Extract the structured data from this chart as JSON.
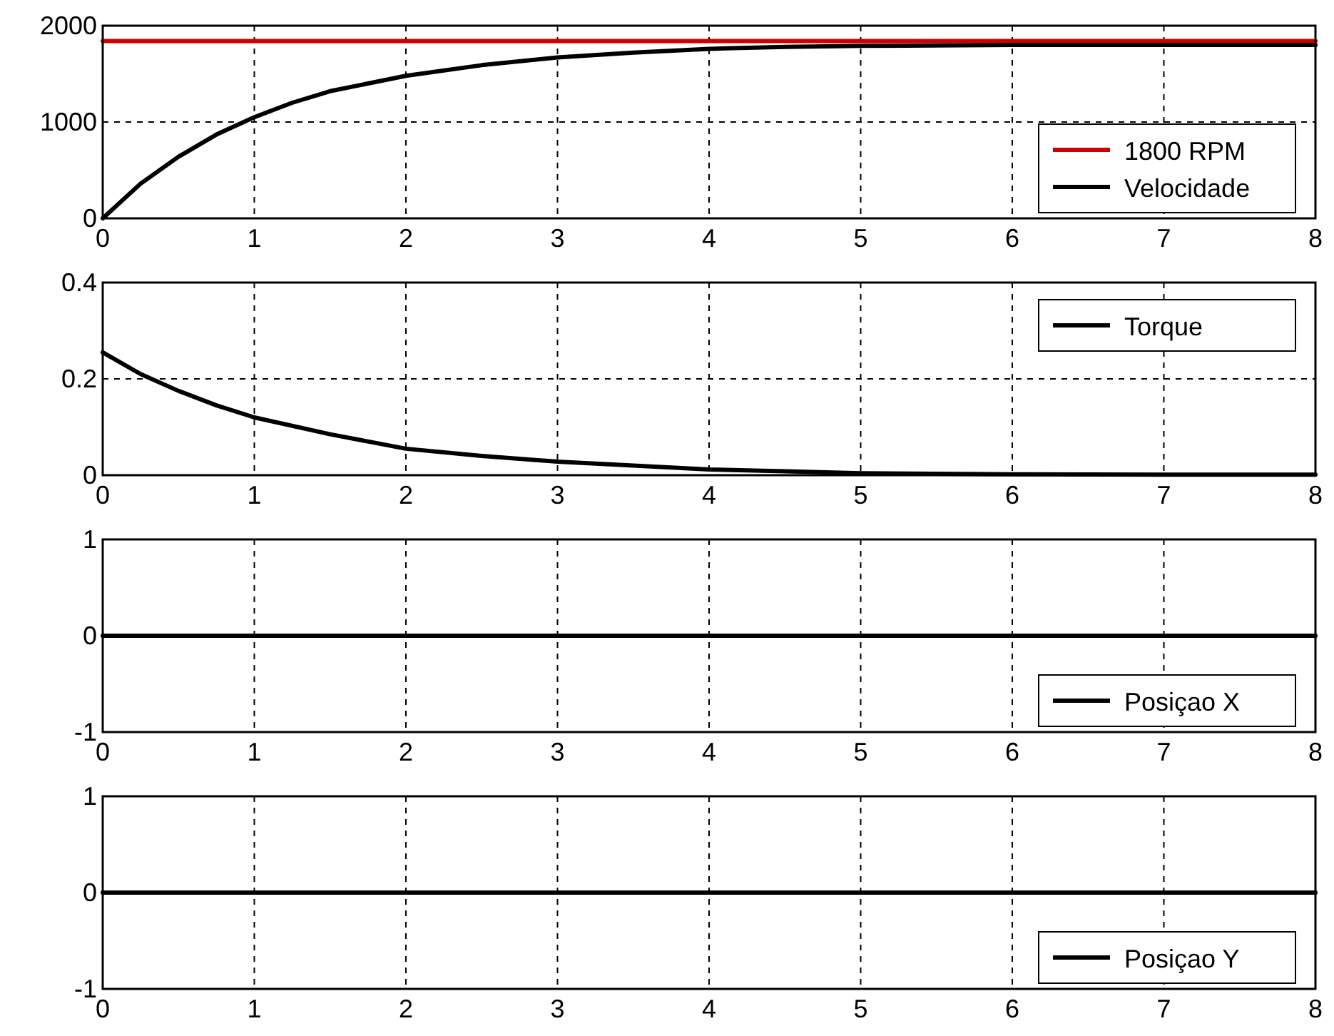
{
  "chart_data": [
    {
      "type": "line",
      "x": [
        0,
        0.25,
        0.5,
        0.75,
        1,
        1.25,
        1.5,
        2,
        2.5,
        3,
        3.5,
        4,
        4.5,
        5,
        6,
        7,
        8
      ],
      "series": [
        {
          "name": "1800 RPM",
          "color": "#cc0000",
          "x": [
            0,
            8
          ],
          "values": [
            1840,
            1840
          ]
        },
        {
          "name": "Velocidade",
          "color": "#000000",
          "values": [
            0,
            360,
            640,
            870,
            1050,
            1200,
            1320,
            1480,
            1590,
            1670,
            1720,
            1760,
            1780,
            1790,
            1800,
            1800,
            1800
          ]
        }
      ],
      "xlim": [
        0,
        8
      ],
      "xticks": [
        0,
        1,
        2,
        3,
        4,
        5,
        6,
        7,
        8
      ],
      "ylim": [
        0,
        2000
      ],
      "yticks": [
        0,
        1000,
        2000
      ],
      "grid": true,
      "legend": "bottom right",
      "line_style": "solid"
    },
    {
      "type": "line",
      "x": [
        0,
        0.25,
        0.5,
        0.75,
        1,
        1.5,
        2,
        2.5,
        3,
        3.5,
        4,
        4.5,
        5,
        6,
        7,
        8
      ],
      "series": [
        {
          "name": "Torque",
          "color": "#000000",
          "values": [
            0.255,
            0.21,
            0.175,
            0.145,
            0.12,
            0.085,
            0.055,
            0.04,
            0.028,
            0.02,
            0.012,
            0.008,
            0.004,
            0.002,
            0.001,
            0.001
          ]
        }
      ],
      "xlim": [
        0,
        8
      ],
      "xticks": [
        0,
        1,
        2,
        3,
        4,
        5,
        6,
        7,
        8
      ],
      "ylim": [
        0,
        0.4
      ],
      "yticks": [
        0,
        0.2,
        0.4
      ],
      "grid": true,
      "legend": "top right",
      "line_style": "solid"
    },
    {
      "type": "line",
      "x": [
        0,
        8
      ],
      "series": [
        {
          "name": "Posiçao X",
          "color": "#000000",
          "values": [
            0,
            0
          ]
        }
      ],
      "xlim": [
        0,
        8
      ],
      "xticks": [
        0,
        1,
        2,
        3,
        4,
        5,
        6,
        7,
        8
      ],
      "ylim": [
        -1,
        1
      ],
      "yticks": [
        -1,
        0,
        1
      ],
      "grid": true,
      "legend": "bottom right",
      "line_style": "solid"
    },
    {
      "type": "line",
      "x": [
        0,
        8
      ],
      "series": [
        {
          "name": "Posiçao Y",
          "color": "#000000",
          "values": [
            0,
            0
          ]
        }
      ],
      "xlim": [
        0,
        8
      ],
      "xticks": [
        0,
        1,
        2,
        3,
        4,
        5,
        6,
        7,
        8
      ],
      "ylim": [
        -1,
        1
      ],
      "yticks": [
        -1,
        0,
        1
      ],
      "grid": true,
      "legend": "bottom right",
      "line_style": "solid"
    }
  ]
}
